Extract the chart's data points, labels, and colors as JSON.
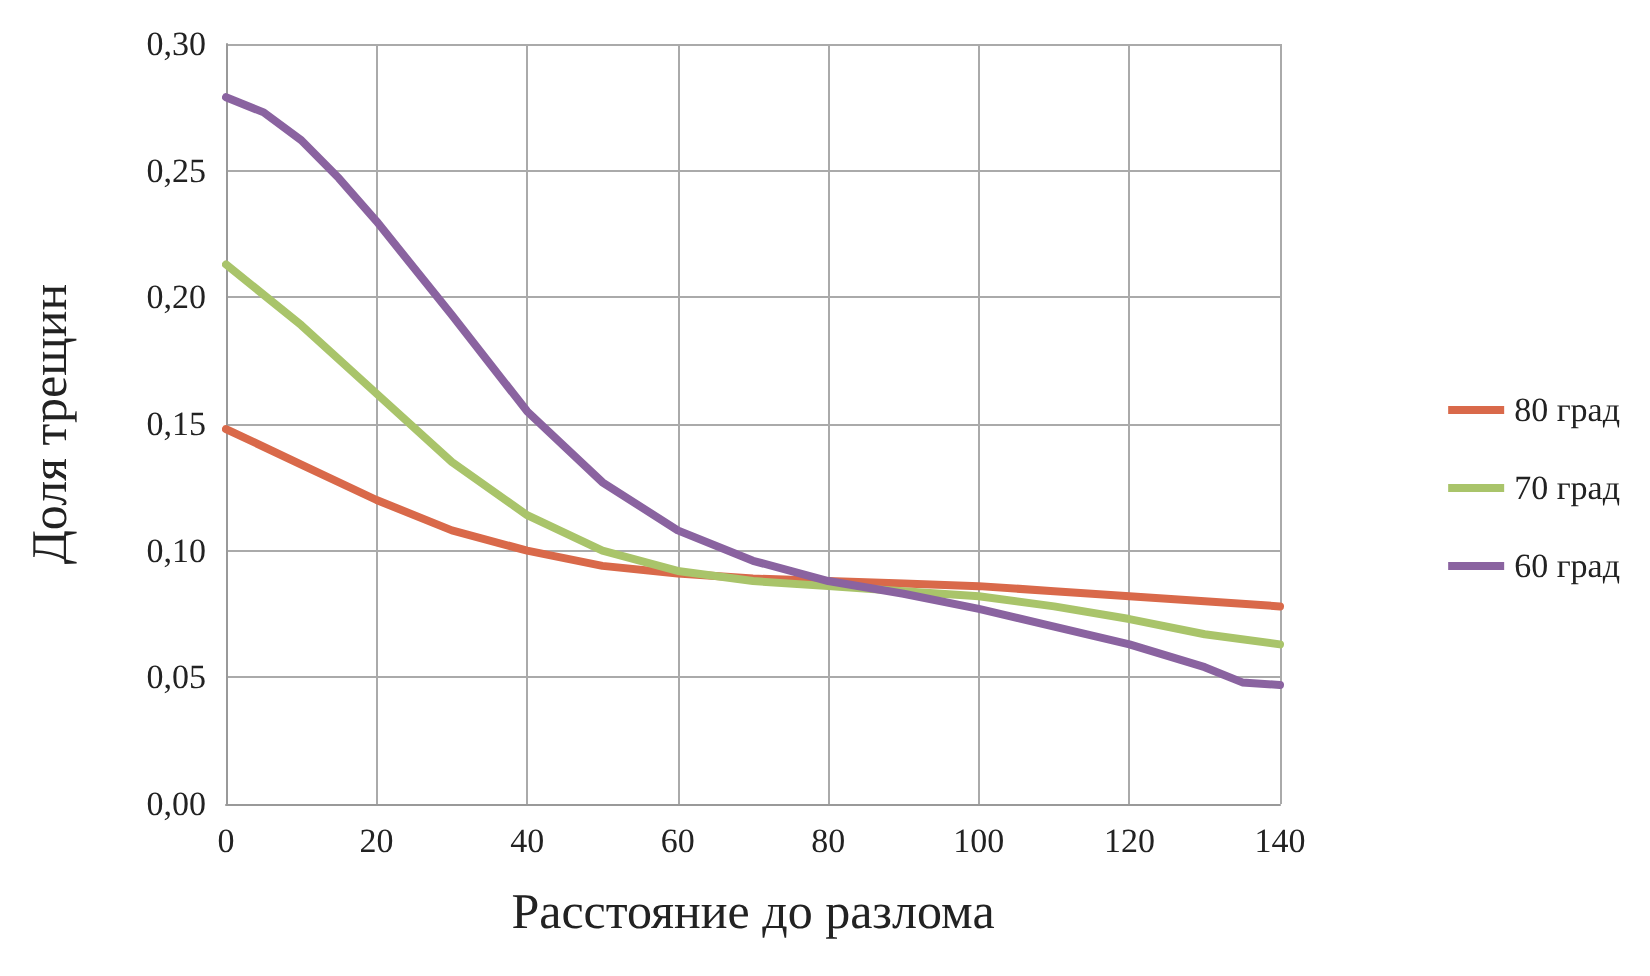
{
  "chart_data": {
    "type": "line",
    "xlabel": "Расстояние до разлома",
    "ylabel": "Доля трещин",
    "xlim": [
      0,
      140
    ],
    "xticks": [
      0,
      20,
      40,
      60,
      80,
      100,
      120,
      140
    ],
    "ylim": [
      0,
      0.3
    ],
    "yticks": [
      {
        "value": 0,
        "label": "0,00"
      },
      {
        "value": 0.05,
        "label": "0,05"
      },
      {
        "value": 0.1,
        "label": "0,10"
      },
      {
        "value": 0.15,
        "label": "0,15"
      },
      {
        "value": 0.2,
        "label": "0,20"
      },
      {
        "value": 0.25,
        "label": "0,25"
      },
      {
        "value": 0.3,
        "label": "0,30"
      }
    ],
    "grid": true,
    "legend": "right",
    "marker": "none",
    "line_style": "solid",
    "series": [
      {
        "name": "80 град",
        "color": "#d9694a",
        "x": [
          0,
          10,
          20,
          30,
          40,
          50,
          60,
          70,
          80,
          90,
          100,
          110,
          120,
          130,
          140
        ],
        "values": [
          0.148,
          0.134,
          0.12,
          0.108,
          0.1,
          0.094,
          0.091,
          0.089,
          0.088,
          0.087,
          0.086,
          0.084,
          0.082,
          0.08,
          0.078
        ]
      },
      {
        "name": "70 град",
        "color": "#a9c46a",
        "x": [
          0,
          10,
          20,
          30,
          40,
          50,
          60,
          70,
          80,
          90,
          100,
          110,
          120,
          130,
          140
        ],
        "values": [
          0.213,
          0.189,
          0.162,
          0.135,
          0.114,
          0.1,
          0.092,
          0.088,
          0.086,
          0.084,
          0.082,
          0.078,
          0.073,
          0.067,
          0.063
        ]
      },
      {
        "name": "60 град",
        "color": "#8a63a0",
        "x": [
          0,
          5,
          10,
          15,
          20,
          30,
          40,
          50,
          60,
          70,
          80,
          90,
          100,
          110,
          120,
          130,
          135,
          140
        ],
        "values": [
          0.279,
          0.273,
          0.262,
          0.247,
          0.23,
          0.193,
          0.155,
          0.127,
          0.108,
          0.096,
          0.088,
          0.083,
          0.077,
          0.07,
          0.063,
          0.054,
          0.048,
          0.047
        ]
      }
    ]
  }
}
